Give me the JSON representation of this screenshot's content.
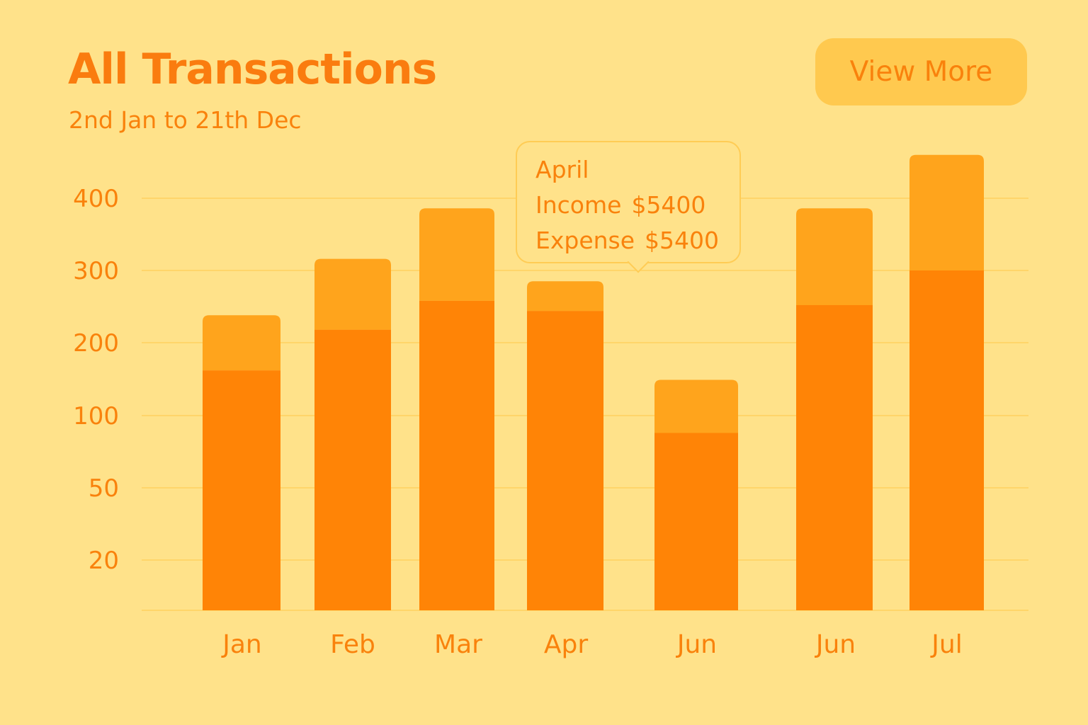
{
  "header": {
    "title": "All Transactions",
    "subtitle": "2nd Jan to 21th Dec",
    "view_more_label": "View More"
  },
  "tooltip": {
    "month": "April",
    "income_label": "Income",
    "income_value": "$5400",
    "expense_label": "Expense",
    "expense_value": "$5400"
  },
  "colors": {
    "background": "#FFE28A",
    "accent": "#F9820C",
    "bar_bottom": "#FF8406",
    "bar_top": "#FFA41C",
    "button": "#FFC94F",
    "gridline": "#FFD56A"
  },
  "chart_data": {
    "type": "bar",
    "stacked": true,
    "categories": [
      "Jan",
      "Feb",
      "Mar",
      "Apr",
      "Jun",
      "Jun",
      "Jul"
    ],
    "y_ticks": [
      20,
      50,
      100,
      200,
      300,
      400
    ],
    "series": [
      {
        "values": [
          162,
          218,
          258,
          244,
          88,
          252,
          300
        ]
      },
      {
        "values": [
          76,
          98,
          128,
          41,
          61,
          134,
          160
        ]
      }
    ],
    "grid": true
  }
}
